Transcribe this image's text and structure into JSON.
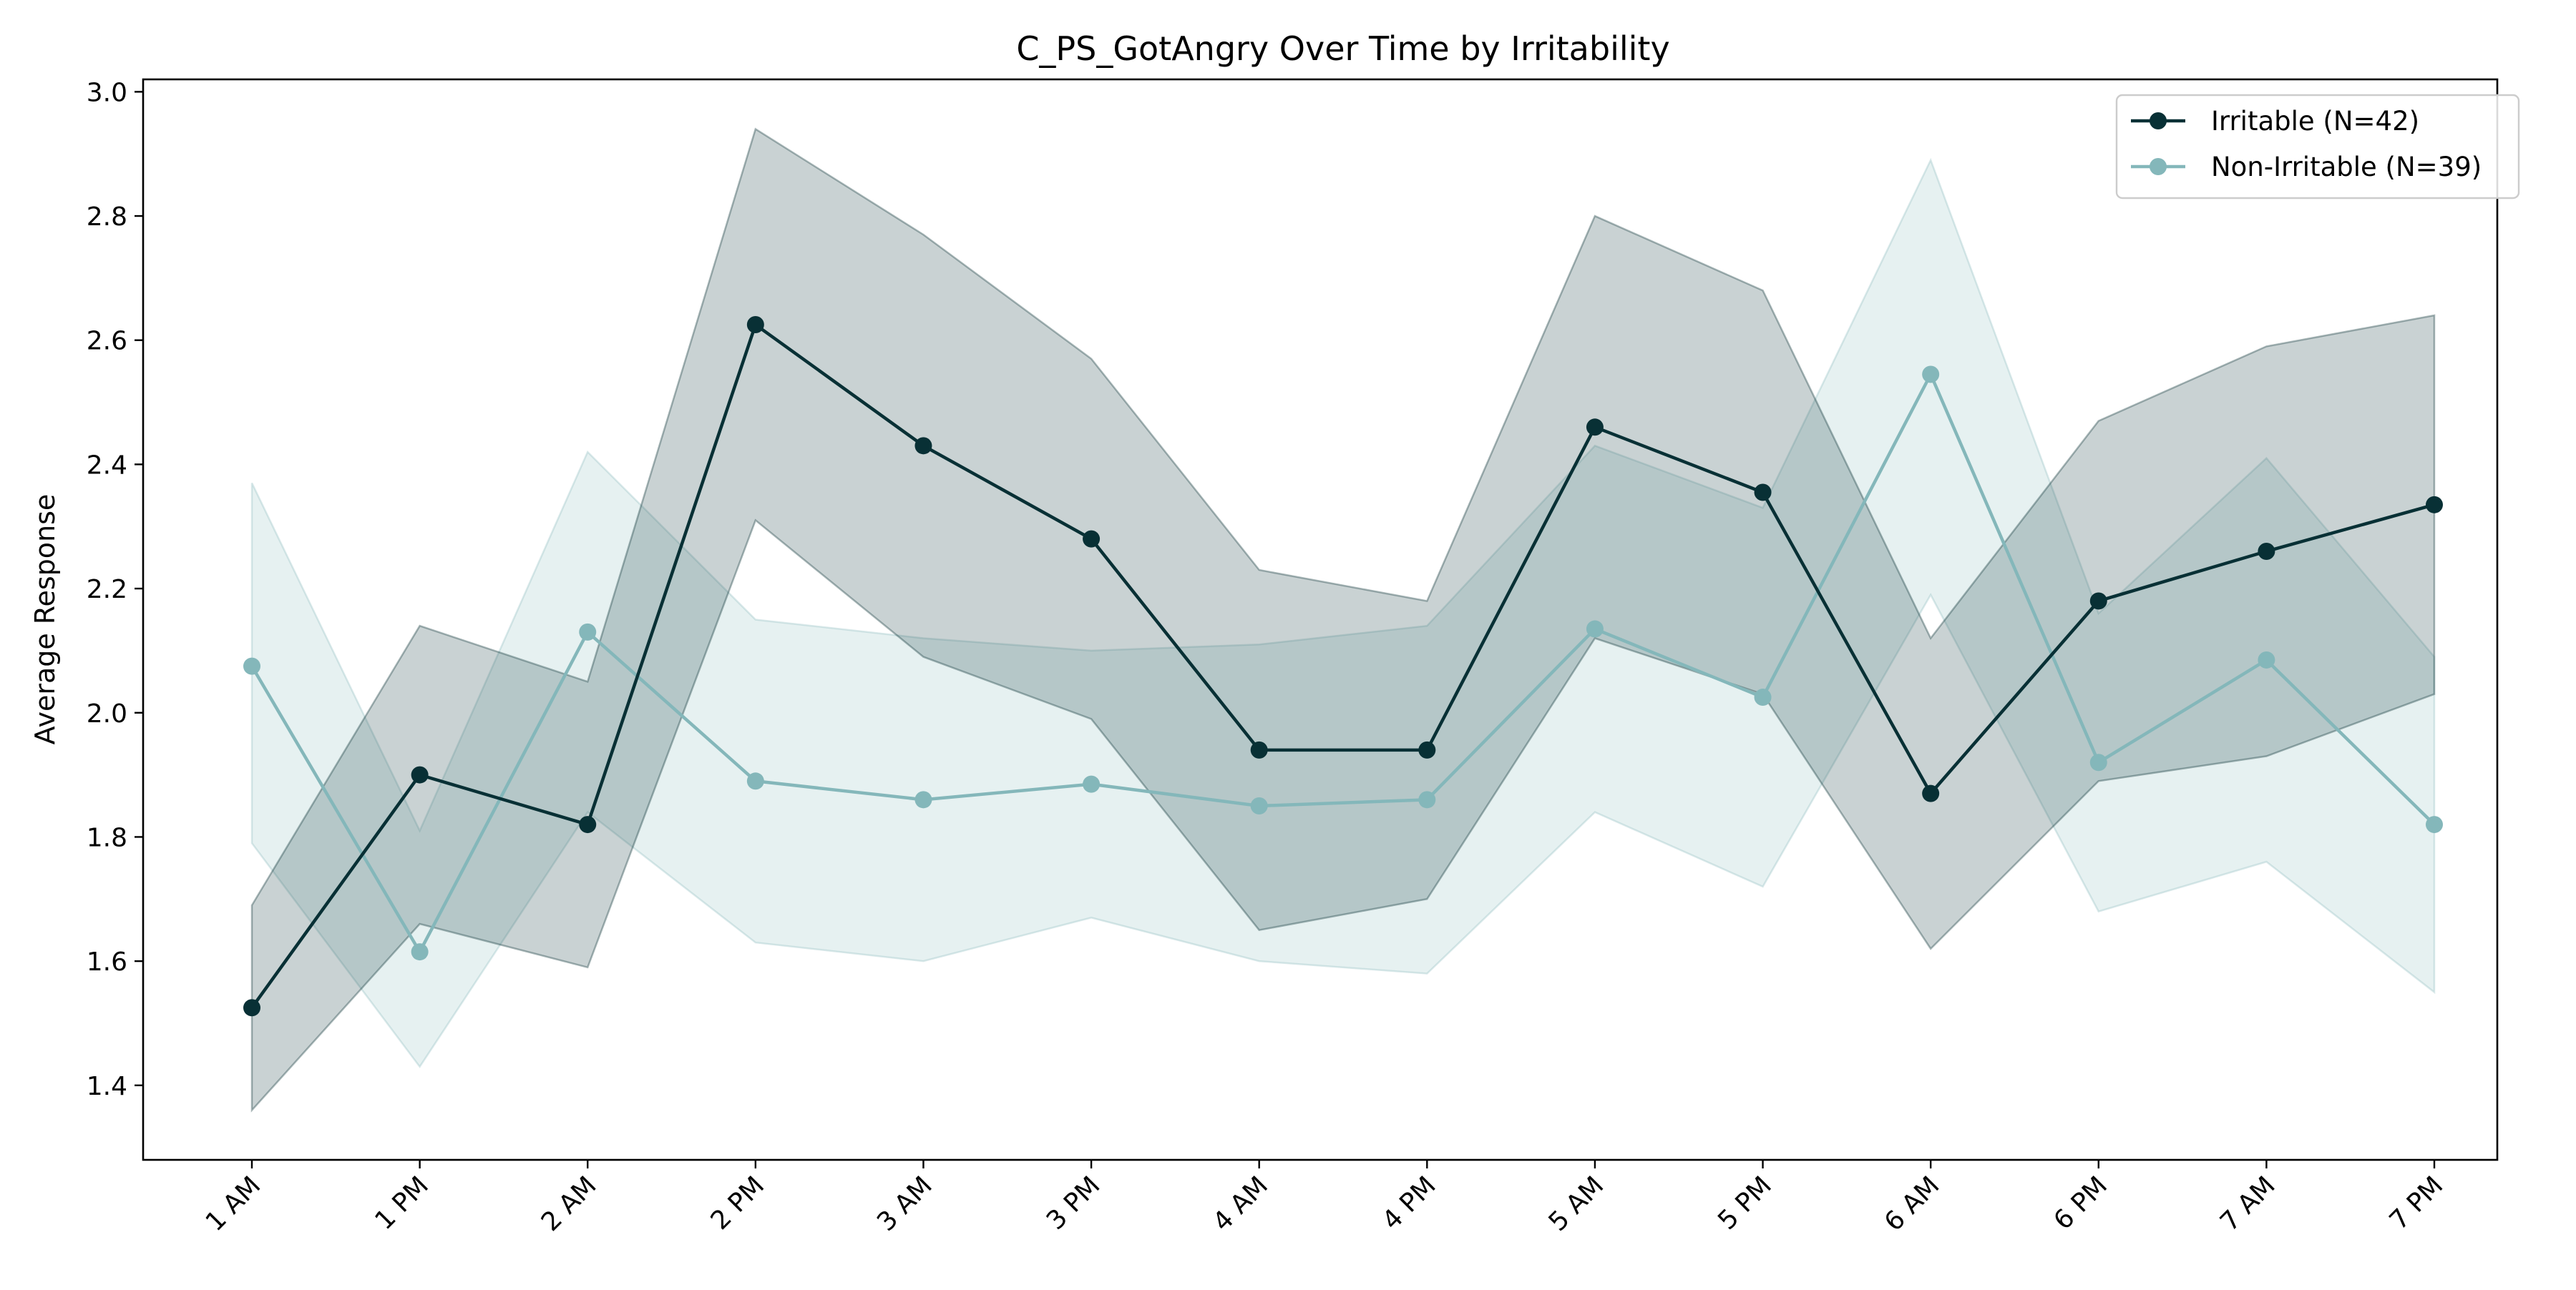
{
  "chart_data": {
    "type": "line",
    "title": "C_PS_GotAngry Over Time by Irritability",
    "xlabel": "",
    "ylabel": "Average Response",
    "categories": [
      "1 AM",
      "1 PM",
      "2 AM",
      "2 PM",
      "3 AM",
      "3 PM",
      "4 AM",
      "4 PM",
      "5 AM",
      "5 PM",
      "6 AM",
      "6 PM",
      "7 AM",
      "7 PM"
    ],
    "ylim": [
      1.28,
      3.02
    ],
    "yticks": [
      "1.4",
      "1.6",
      "1.8",
      "2.0",
      "2.2",
      "2.4",
      "2.6",
      "2.8",
      "3.0"
    ],
    "grid": false,
    "legend_position": "top-right",
    "series": [
      {
        "name": "Irritable (N=42)",
        "color": "#083035",
        "values": [
          1.525,
          1.9,
          1.82,
          2.625,
          2.43,
          2.28,
          1.94,
          1.94,
          2.46,
          2.355,
          1.87,
          2.18,
          2.26,
          2.335
        ],
        "lower": [
          1.36,
          1.66,
          1.59,
          2.31,
          2.09,
          1.99,
          1.65,
          1.7,
          2.12,
          2.03,
          1.62,
          1.89,
          1.93,
          2.03
        ],
        "upper": [
          1.69,
          2.14,
          2.05,
          2.94,
          2.77,
          2.57,
          2.23,
          2.18,
          2.8,
          2.68,
          2.12,
          2.47,
          2.59,
          2.64
        ]
      },
      {
        "name": "Non-Irritable (N=39)",
        "color": "#84b7ba",
        "values": [
          2.075,
          1.615,
          2.13,
          1.89,
          1.86,
          1.885,
          1.85,
          1.86,
          2.135,
          2.025,
          2.545,
          1.92,
          2.085,
          1.82
        ],
        "lower": [
          1.79,
          1.43,
          1.84,
          1.63,
          1.6,
          1.67,
          1.6,
          1.58,
          1.84,
          1.72,
          2.19,
          1.68,
          1.76,
          1.55
        ],
        "upper": [
          2.37,
          1.81,
          2.42,
          2.15,
          2.12,
          2.1,
          2.11,
          2.14,
          2.43,
          2.33,
          2.89,
          2.16,
          2.41,
          2.09
        ]
      }
    ]
  }
}
